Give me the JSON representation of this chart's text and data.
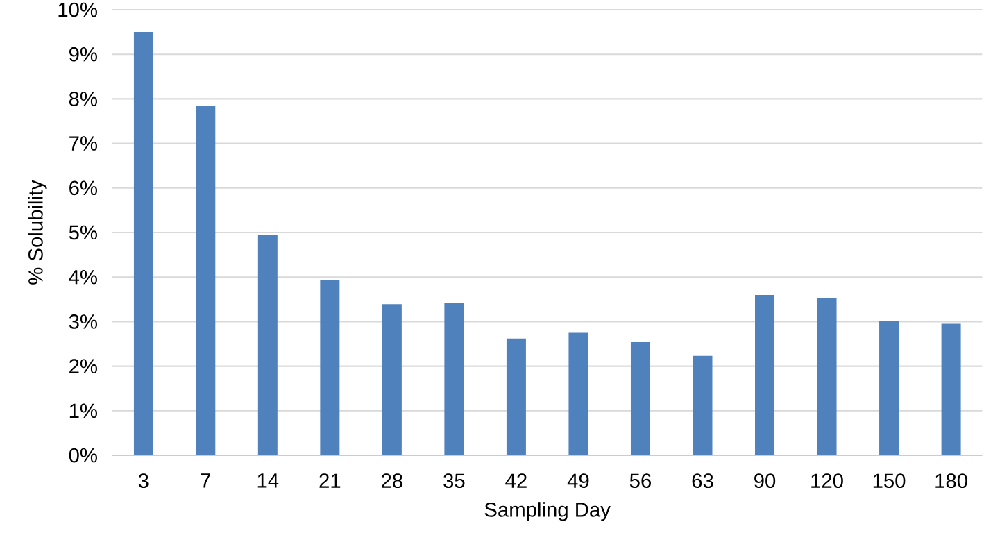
{
  "chart_data": {
    "type": "bar",
    "xlabel": "Sampling Day",
    "ylabel": "% Solubility",
    "categories": [
      "3",
      "7",
      "14",
      "21",
      "28",
      "35",
      "42",
      "49",
      "56",
      "63",
      "90",
      "120",
      "150",
      "180"
    ],
    "values": [
      9.5,
      7.85,
      4.94,
      3.94,
      3.39,
      3.41,
      2.62,
      2.75,
      2.54,
      2.23,
      3.6,
      3.53,
      3.01,
      2.95
    ],
    "color": "#4f81bd",
    "ylim": [
      0,
      10
    ],
    "yticks": [
      {
        "value": 0,
        "label": "0%"
      },
      {
        "value": 1,
        "label": "1%"
      },
      {
        "value": 2,
        "label": "2%"
      },
      {
        "value": 3,
        "label": "3%"
      },
      {
        "value": 4,
        "label": "4%"
      },
      {
        "value": 5,
        "label": "5%"
      },
      {
        "value": 6,
        "label": "6%"
      },
      {
        "value": 7,
        "label": "7%"
      },
      {
        "value": 8,
        "label": "8%"
      },
      {
        "value": 9,
        "label": "9%"
      },
      {
        "value": 10,
        "label": "10%"
      }
    ],
    "grid": "y"
  }
}
